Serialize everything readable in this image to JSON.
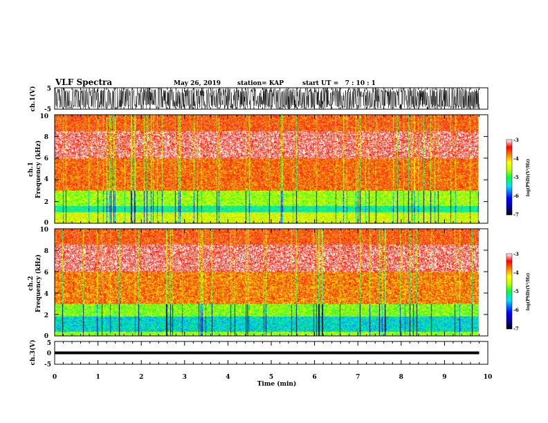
{
  "header": {
    "title": "VLF Spectra",
    "date": "May 26, 2019",
    "station": "station= KAP",
    "start": "start UT =   7 : 10 : 1"
  },
  "chart_data": [
    {
      "type": "line",
      "panel": "ch1-waveform",
      "ylabel": "ch.1(V)",
      "xlim": [
        0,
        10
      ],
      "ylim": [
        -5,
        5
      ],
      "yticks": [
        5,
        -5
      ],
      "ytick_labels": [
        "5",
        "-5"
      ],
      "data_end_min": 9.8,
      "description_level": "saturated",
      "color": "#000000"
    },
    {
      "type": "heatmap",
      "panel": "ch1-spectrogram",
      "ylabel_lines": [
        "ch.1",
        "Frequency (kHz)"
      ],
      "xlim": [
        0,
        10
      ],
      "ylim": [
        0,
        10
      ],
      "yticks": [
        0,
        2,
        4,
        6,
        8,
        10
      ],
      "ytick_labels": [
        "0",
        "2",
        "4",
        "6",
        "8",
        "10"
      ],
      "data_end_min": 9.8,
      "bands": [
        {
          "fmin": 0.0,
          "fmax": 1.0,
          "log_psd": -4.4
        },
        {
          "fmin": 1.0,
          "fmax": 1.6,
          "log_psd": -5.2
        },
        {
          "fmin": 1.6,
          "fmax": 3.0,
          "log_psd": -4.6
        },
        {
          "fmin": 3.0,
          "fmax": 6.0,
          "log_psd": -3.7
        },
        {
          "fmin": 6.0,
          "fmax": 8.5,
          "log_psd": -3.2
        },
        {
          "fmin": 8.5,
          "fmax": 10.0,
          "log_psd": -3.6
        }
      ],
      "colorbar": {
        "range": [
          -7,
          -3
        ],
        "ticks": [
          -3,
          -4,
          -5,
          -6,
          -7
        ],
        "tick_labels": [
          "-3",
          "-4",
          "-5",
          "-6",
          "-7"
        ],
        "label": "log(PSD)(V²/Hz)"
      }
    },
    {
      "type": "heatmap",
      "panel": "ch2-spectrogram",
      "ylabel_lines": [
        "ch.2",
        "Frequency (kHz)"
      ],
      "xlim": [
        0,
        10
      ],
      "ylim": [
        0,
        10
      ],
      "yticks": [
        0,
        2,
        4,
        6,
        8,
        10
      ],
      "ytick_labels": [
        "0",
        "2",
        "4",
        "6",
        "8",
        "10"
      ],
      "data_end_min": 9.8,
      "bands": [
        {
          "fmin": 0.0,
          "fmax": 0.4,
          "log_psd": -4.6
        },
        {
          "fmin": 0.4,
          "fmax": 1.8,
          "log_psd": -5.4
        },
        {
          "fmin": 1.8,
          "fmax": 3.0,
          "log_psd": -4.7
        },
        {
          "fmin": 3.0,
          "fmax": 6.0,
          "log_psd": -3.8
        },
        {
          "fmin": 6.0,
          "fmax": 8.5,
          "log_psd": -3.2
        },
        {
          "fmin": 8.5,
          "fmax": 10.0,
          "log_psd": -3.6
        }
      ],
      "colorbar": {
        "range": [
          -7,
          -3
        ],
        "ticks": [
          -3,
          -4,
          -5,
          -6,
          -7
        ],
        "tick_labels": [
          "-3",
          "-4",
          "-5",
          "-6",
          "-7"
        ],
        "label": "log(PSD)(V²/Hz)"
      }
    },
    {
      "type": "line",
      "panel": "ch3-waveform",
      "ylabel": "ch.3(V)",
      "xlabel": "Time (min)",
      "xlim": [
        0,
        10
      ],
      "ylim": [
        -5,
        5
      ],
      "yticks": [
        5,
        0,
        -5
      ],
      "ytick_labels": [
        "5",
        "0",
        "-5"
      ],
      "xticks": [
        0,
        1,
        2,
        3,
        4,
        5,
        6,
        7,
        8,
        9,
        10
      ],
      "xtick_labels": [
        "0",
        "1",
        "2",
        "3",
        "4",
        "5",
        "6",
        "7",
        "8",
        "9",
        "10"
      ],
      "data_end_min": 9.8,
      "level_v": 0.0,
      "color": "#000000"
    }
  ]
}
